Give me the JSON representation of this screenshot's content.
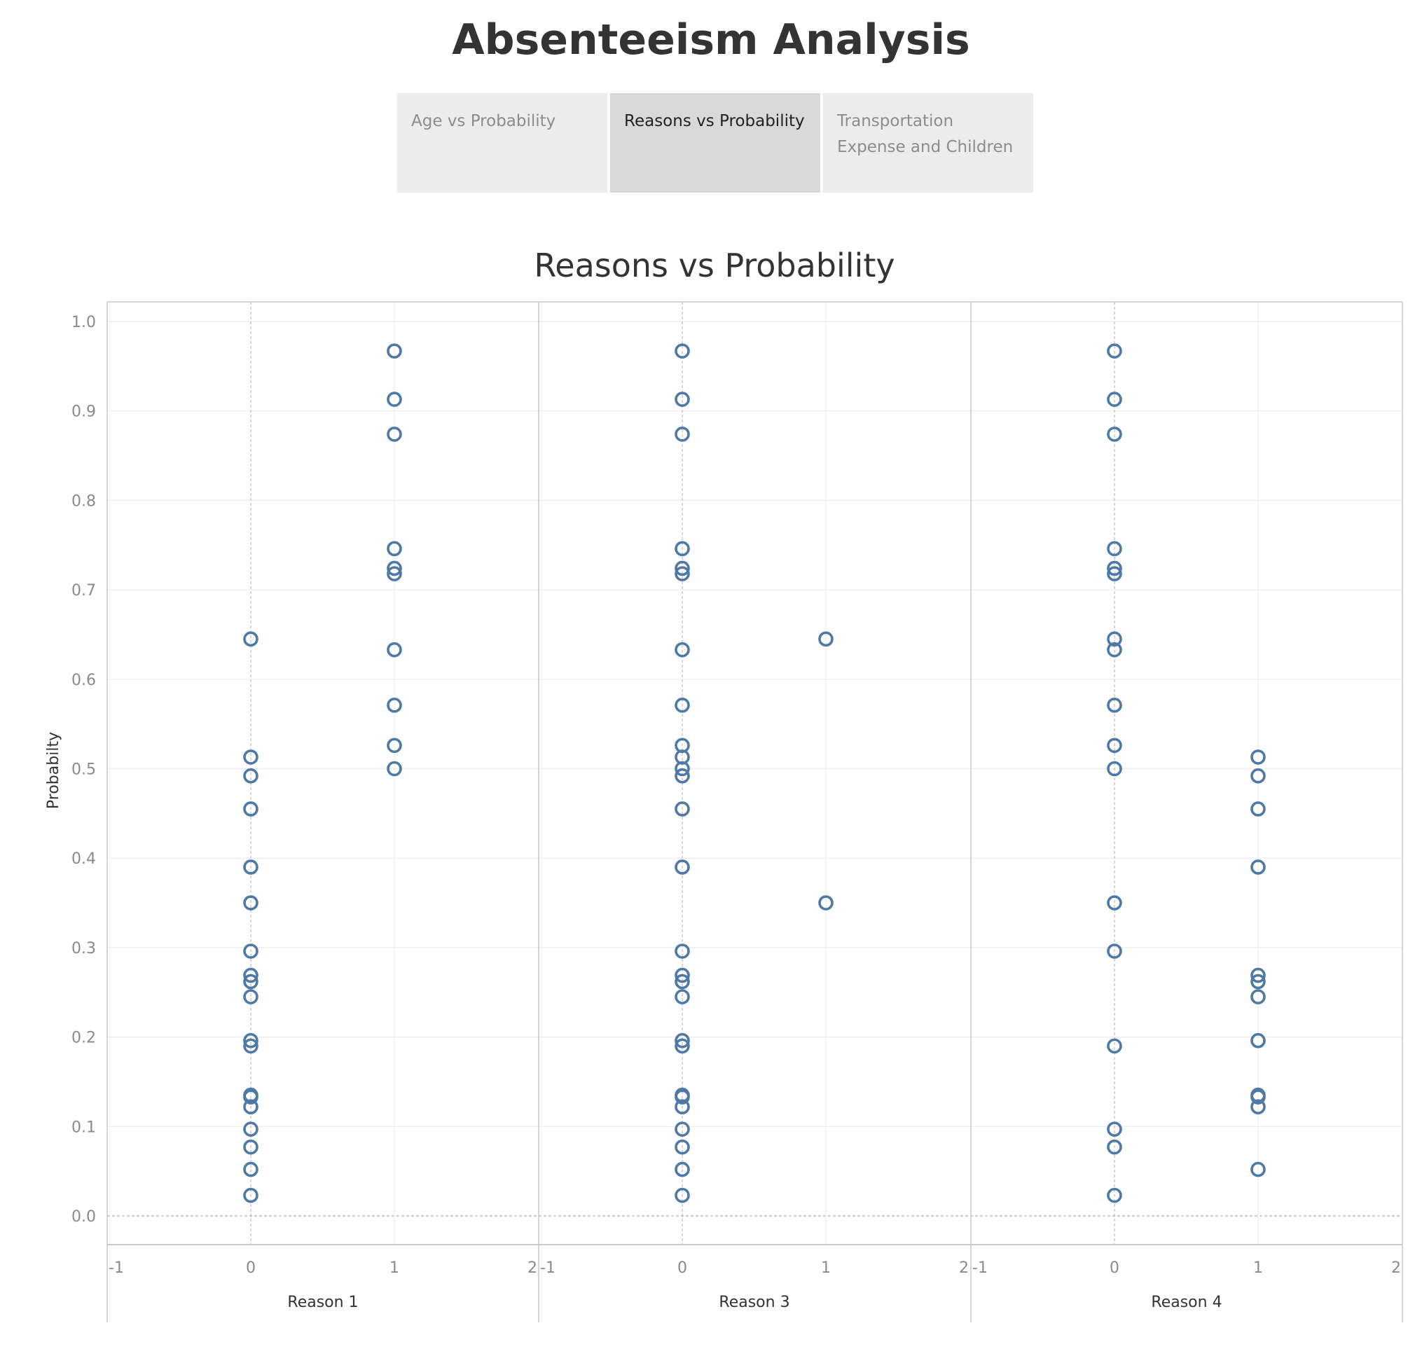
{
  "dashboard": {
    "title": "Absenteeism Analysis",
    "tabs": [
      {
        "label_lines": [
          "Age vs Probability"
        ],
        "active": false
      },
      {
        "label_lines": [
          "Reasons vs Probability"
        ],
        "active": true
      },
      {
        "label_lines": [
          "Transportation",
          "Expense and Children"
        ],
        "active": false
      }
    ]
  },
  "colors": {
    "marker": "#4e79a7",
    "axis_text": "#8a8a8a",
    "grid": "#ececec",
    "border": "#c8c8c8"
  },
  "chart_data": {
    "type": "scatter",
    "title": "Reasons vs Probability",
    "ylabel": "Probabilty",
    "ylim": [
      -0.03,
      1.02
    ],
    "xlim": [
      -1,
      2
    ],
    "yticks": [
      "0.0",
      "0.1",
      "0.2",
      "0.3",
      "0.4",
      "0.5",
      "0.6",
      "0.7",
      "0.8",
      "0.9",
      "1.0"
    ],
    "xticks": [
      "-1",
      "0",
      "1",
      "2"
    ],
    "grid": true,
    "marker": "hollow-circle",
    "panels": [
      {
        "xlabel": "Reason 1",
        "points_x0": [
          0.645,
          0.513,
          0.492,
          0.455,
          0.39,
          0.35,
          0.296,
          0.269,
          0.262,
          0.245,
          0.196,
          0.19,
          0.135,
          0.133,
          0.122,
          0.097,
          0.077,
          0.052,
          0.023
        ],
        "points_x1": [
          0.967,
          0.913,
          0.874,
          0.746,
          0.724,
          0.718,
          0.633,
          0.571,
          0.526,
          0.5
        ]
      },
      {
        "xlabel": "Reason 3",
        "points_x0": [
          0.967,
          0.913,
          0.874,
          0.746,
          0.724,
          0.718,
          0.633,
          0.571,
          0.526,
          0.513,
          0.5,
          0.492,
          0.455,
          0.39,
          0.296,
          0.269,
          0.262,
          0.245,
          0.196,
          0.19,
          0.135,
          0.133,
          0.122,
          0.097,
          0.077,
          0.052,
          0.023
        ],
        "points_x1": [
          0.645,
          0.35
        ]
      },
      {
        "xlabel": "Reason 4",
        "points_x0": [
          0.967,
          0.913,
          0.874,
          0.746,
          0.724,
          0.718,
          0.645,
          0.633,
          0.571,
          0.526,
          0.5,
          0.35,
          0.296,
          0.19,
          0.097,
          0.077,
          0.023
        ],
        "points_x1": [
          0.513,
          0.492,
          0.455,
          0.39,
          0.269,
          0.262,
          0.245,
          0.196,
          0.135,
          0.133,
          0.122,
          0.052
        ]
      }
    ]
  }
}
